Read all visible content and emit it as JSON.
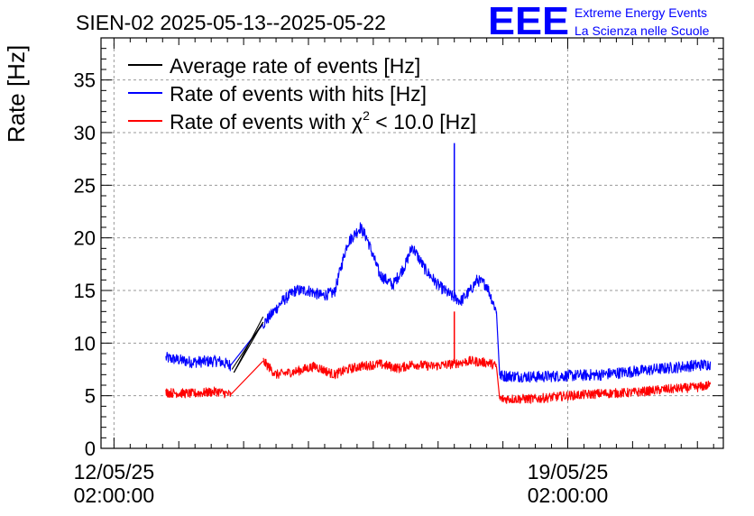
{
  "chart_data": {
    "type": "line",
    "title": "SIEN-02 2025-05-13--2025-05-22",
    "ylabel": "Rate [Hz]",
    "xlabel": "",
    "ylim": [
      0,
      39
    ],
    "yticks": [
      0,
      5,
      10,
      15,
      20,
      25,
      30,
      35
    ],
    "xlim_days": [
      -0.2,
      9.4
    ],
    "xticks": [
      {
        "day": 0,
        "label_date": "12/05/25",
        "label_time": "02:00:00"
      },
      {
        "day": 7,
        "label_date": "19/05/25",
        "label_time": "02:00:00"
      }
    ],
    "grid": true,
    "legend": {
      "placement": "top-left",
      "entries": [
        {
          "label": "Average rate of events [Hz]",
          "color": "#000000"
        },
        {
          "label": "Rate of events with hits [Hz]",
          "color": "#0000ff"
        },
        {
          "label_prefix": "Rate of events with ",
          "label_symbol": "χ",
          "label_sup": "2",
          "label_suffix": " < 10.0 [Hz]",
          "color": "#ff0000"
        }
      ]
    },
    "series": [
      {
        "name": "Rate of events with hits [Hz]",
        "color": "#0000ff",
        "noise": 0.55,
        "segments": [
          {
            "x": [
              0.8,
              1.2,
              1.6,
              1.8
            ],
            "y": [
              8.6,
              8.2,
              8.3,
              7.9
            ]
          },
          {
            "x": [
              2.3,
              2.4,
              2.6,
              2.8,
              3.0,
              3.2,
              3.4,
              3.6,
              3.8,
              3.9,
              4.1,
              4.3,
              4.5,
              4.6,
              4.8,
              5.0,
              5.2,
              5.35,
              5.5,
              5.6,
              5.75,
              5.9
            ],
            "y": [
              11.8,
              12.5,
              14.0,
              15.0,
              15.0,
              14.5,
              14.8,
              19.5,
              21.0,
              20.0,
              16.5,
              15.5,
              17.5,
              19.2,
              17.0,
              15.5,
              14.5,
              14.0,
              15.0,
              16.0,
              15.5,
              13.0
            ]
          },
          {
            "x": [
              5.95,
              6.5,
              7.0,
              7.5,
              8.0,
              8.5,
              9.0,
              9.2
            ],
            "y": [
              6.9,
              6.8,
              6.9,
              7.0,
              7.3,
              7.6,
              7.9,
              8.0
            ]
          }
        ],
        "spikes": [
          {
            "x": 5.25,
            "y": 29.0
          }
        ]
      },
      {
        "name": "Rate of events with χ² < 10.0 [Hz]",
        "color": "#ff0000",
        "noise": 0.45,
        "segments": [
          {
            "x": [
              0.8,
              1.2,
              1.6,
              1.8
            ],
            "y": [
              5.3,
              5.2,
              5.4,
              5.1
            ]
          },
          {
            "x": [
              2.3,
              2.5,
              2.8,
              3.1,
              3.4,
              3.6,
              3.8,
              4.1,
              4.4,
              4.6,
              4.9,
              5.2,
              5.5,
              5.8,
              5.9
            ],
            "y": [
              8.3,
              7.0,
              7.3,
              7.8,
              7.0,
              7.5,
              7.8,
              8.0,
              7.6,
              8.0,
              7.8,
              8.0,
              8.3,
              8.1,
              7.8
            ]
          },
          {
            "x": [
              5.95,
              6.5,
              7.0,
              7.5,
              8.0,
              8.5,
              9.0,
              9.2
            ],
            "y": [
              4.7,
              4.7,
              5.0,
              5.2,
              5.3,
              5.6,
              5.8,
              6.0
            ]
          }
        ],
        "spikes": [
          {
            "x": 5.25,
            "y": 13.0
          }
        ]
      },
      {
        "name": "Average rate of events [Hz]",
        "color": "#000000",
        "segments": [
          {
            "x": [
              1.82,
              2.3
            ],
            "y": [
              7.5,
              12.0
            ]
          },
          {
            "x": [
              1.85,
              2.3
            ],
            "y": [
              7.2,
              12.5
            ]
          }
        ]
      }
    ]
  },
  "logo": {
    "letters": "EEE",
    "line1": "Extreme Energy Events",
    "line2": "La Scienza nelle Scuole",
    "color": "#0000ff"
  }
}
